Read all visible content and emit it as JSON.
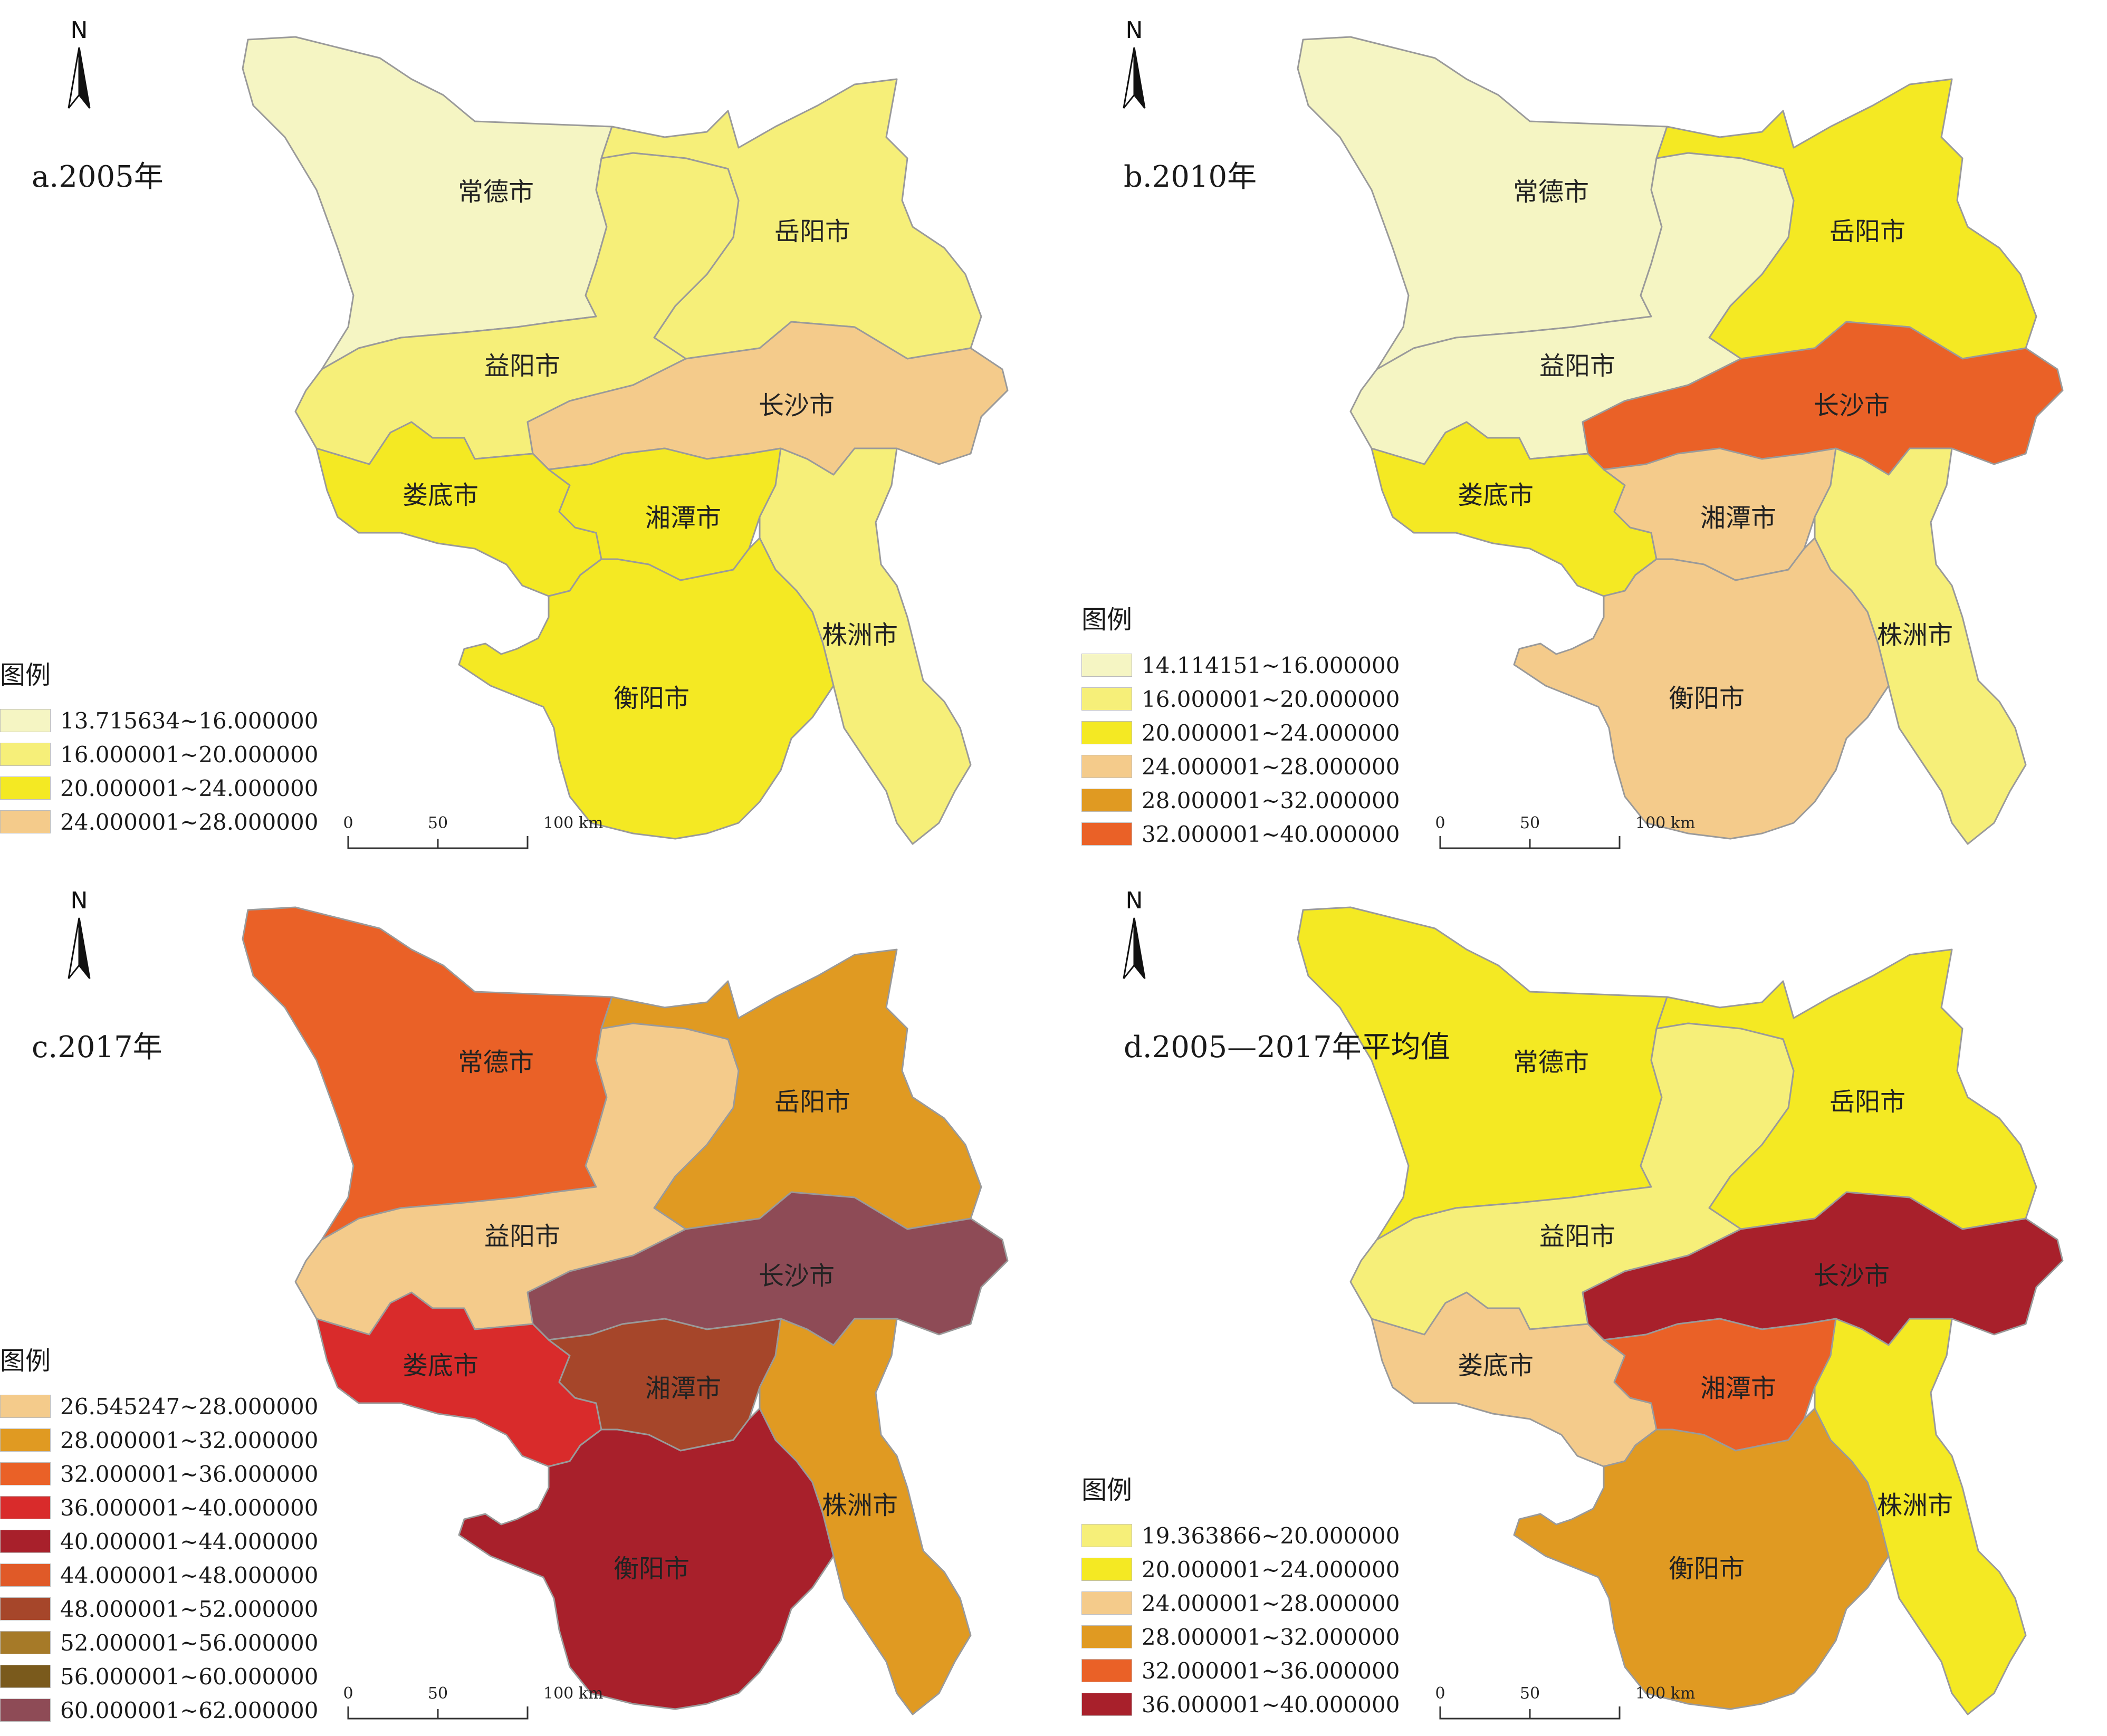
{
  "north": "N",
  "legend_title": "图例",
  "scale": {
    "labels": [
      "0",
      "50",
      "100 km"
    ]
  },
  "cities": [
    "常德市",
    "岳阳市",
    "益阳市",
    "长沙市",
    "娄底市",
    "湘潭市",
    "株洲市",
    "衡阳市"
  ],
  "panels": [
    {
      "title": "a.2005年",
      "colors": {
        "changde": "#f5f5c3",
        "yueyang": "#f6ef79",
        "yiyang": "#f6ef79",
        "changsha": "#f4cb8b",
        "loudi": "#f4e923",
        "xiangtan": "#f4e923",
        "zhuzhou": "#f6ef79",
        "hengyang": "#f4e923"
      },
      "legend": [
        {
          "label": "13.715634~16.000000",
          "color": "#f5f5c3"
        },
        {
          "label": "16.000001~20.000000",
          "color": "#f6ef79"
        },
        {
          "label": "20.000001~24.000000",
          "color": "#f4e923"
        },
        {
          "label": "24.000001~28.000000",
          "color": "#f4cb8b"
        }
      ]
    },
    {
      "title": "b.2010年",
      "colors": {
        "changde": "#f5f5c3",
        "yueyang": "#f4e923",
        "yiyang": "#f5f5c3",
        "changsha": "#ea6127",
        "loudi": "#f4e923",
        "xiangtan": "#f4cb8b",
        "zhuzhou": "#f6ef79",
        "hengyang": "#f4cb8b"
      },
      "legend": [
        {
          "label": "14.114151~16.000000",
          "color": "#f5f5c3"
        },
        {
          "label": "16.000001~20.000000",
          "color": "#f6ef79"
        },
        {
          "label": "20.000001~24.000000",
          "color": "#f4e923"
        },
        {
          "label": "24.000001~28.000000",
          "color": "#f4cb8b"
        },
        {
          "label": "28.000001~32.000000",
          "color": "#e09a22"
        },
        {
          "label": "32.000001~40.000000",
          "color": "#ea6127"
        }
      ]
    },
    {
      "title": "c.2017年",
      "colors": {
        "changde": "#ea6127",
        "yueyang": "#e09a22",
        "yiyang": "#f4cb8b",
        "changsha": "#8e4b56",
        "loudi": "#d92b2b",
        "xiangtan": "#a6462a",
        "zhuzhou": "#e09a22",
        "hengyang": "#a8202b"
      },
      "legend": [
        {
          "label": "26.545247~28.000000",
          "color": "#f4cb8b"
        },
        {
          "label": "28.000001~32.000000",
          "color": "#e09a22"
        },
        {
          "label": "32.000001~36.000000",
          "color": "#ea6127"
        },
        {
          "label": "36.000001~40.000000",
          "color": "#d92b2b"
        },
        {
          "label": "40.000001~44.000000",
          "color": "#a8202b"
        },
        {
          "label": "44.000001~48.000000",
          "color": "#e05a28"
        },
        {
          "label": "48.000001~52.000000",
          "color": "#a6462a"
        },
        {
          "label": "52.000001~56.000000",
          "color": "#a67a28"
        },
        {
          "label": "56.000001~60.000000",
          "color": "#7a5a1c"
        },
        {
          "label": "60.000001~62.000000",
          "color": "#8e4b56"
        }
      ]
    },
    {
      "title": "d.2005—2017年平均值",
      "colors": {
        "changde": "#f4e923",
        "yueyang": "#f4e923",
        "yiyang": "#f6ef79",
        "changsha": "#a8202b",
        "loudi": "#f4cb8b",
        "xiangtan": "#ea6127",
        "zhuzhou": "#f4e923",
        "hengyang": "#e09a22"
      },
      "legend": [
        {
          "label": "19.363866~20.000000",
          "color": "#f6ef79"
        },
        {
          "label": "20.000001~24.000000",
          "color": "#f4e923"
        },
        {
          "label": "24.000001~28.000000",
          "color": "#f4cb8b"
        },
        {
          "label": "28.000001~32.000000",
          "color": "#e09a22"
        },
        {
          "label": "32.000001~36.000000",
          "color": "#ea6127"
        },
        {
          "label": "36.000001~40.000000",
          "color": "#a8202b"
        }
      ]
    }
  ]
}
